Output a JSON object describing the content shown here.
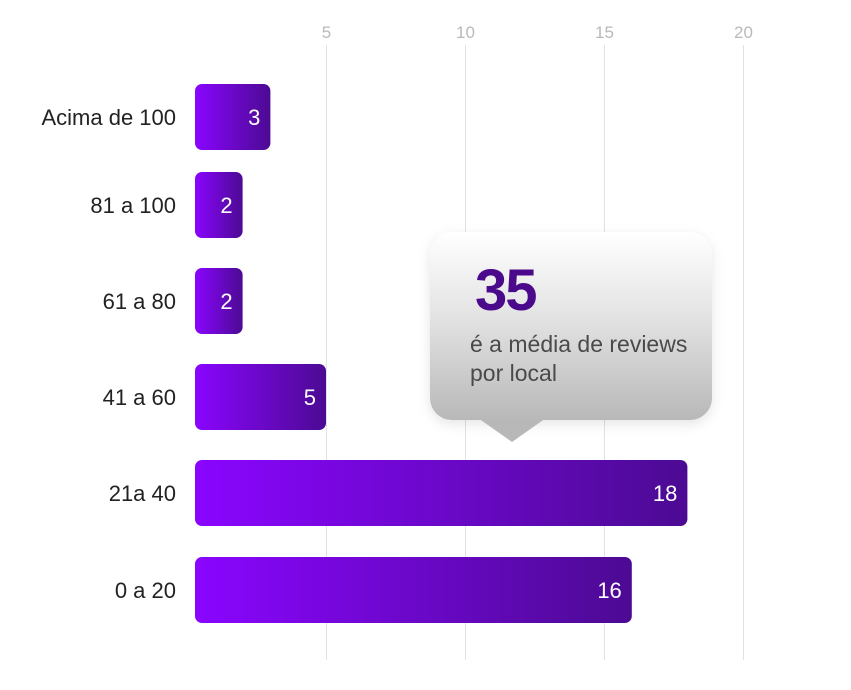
{
  "chart_data": {
    "type": "bar",
    "orientation": "horizontal",
    "categories": [
      "Acima de 100",
      "81 a 100",
      "61 a 80",
      "41 a 60",
      "21a 40",
      "0 a 20"
    ],
    "values": [
      3,
      2,
      2,
      5,
      18,
      16
    ],
    "xlim": [
      0,
      22
    ],
    "xticks": [
      5,
      10,
      15,
      20
    ],
    "grid": true,
    "bar_color_start": "#8a05ff",
    "bar_color_end": "#4c0a93"
  },
  "callout": {
    "value": "35",
    "text": "é a média de reviews por local"
  }
}
